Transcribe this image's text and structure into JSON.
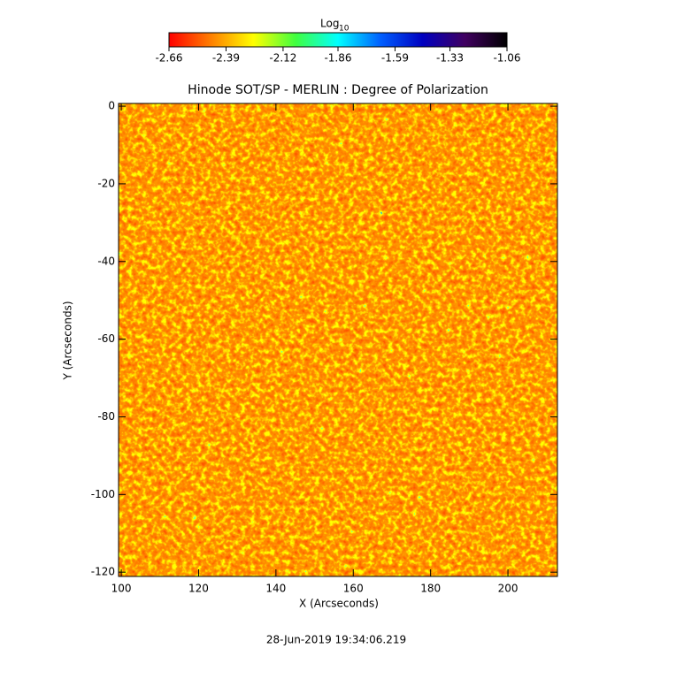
{
  "chart_data": {
    "type": "image",
    "title": "Hinode SOT/SP - MERLIN : Degree of Polarization",
    "xlabel": "X (Arcseconds)",
    "ylabel": "Y (Arcseconds)",
    "xlim": [
      99.3,
      212.8
    ],
    "ylim": [
      -121.1,
      0.7
    ],
    "xticks": [
      100,
      120,
      140,
      160,
      180,
      200
    ],
    "yticks": [
      0,
      -20,
      -40,
      -60,
      -80,
      -100,
      -120
    ],
    "colorbar": {
      "title": "Log",
      "title_subscript": "10",
      "clim": [
        -2.66,
        -1.06
      ],
      "ticks": [
        -2.66,
        -2.39,
        -2.12,
        -1.86,
        -1.59,
        -1.33,
        -1.06
      ],
      "colors": [
        "#ff0000",
        "#ff8000",
        "#ffff00",
        "#40ff40",
        "#00ffff",
        "#0060ff",
        "#0000c0",
        "#400060",
        "#000000"
      ]
    },
    "footer": "28-Jun-2019 19:34:06.219"
  }
}
